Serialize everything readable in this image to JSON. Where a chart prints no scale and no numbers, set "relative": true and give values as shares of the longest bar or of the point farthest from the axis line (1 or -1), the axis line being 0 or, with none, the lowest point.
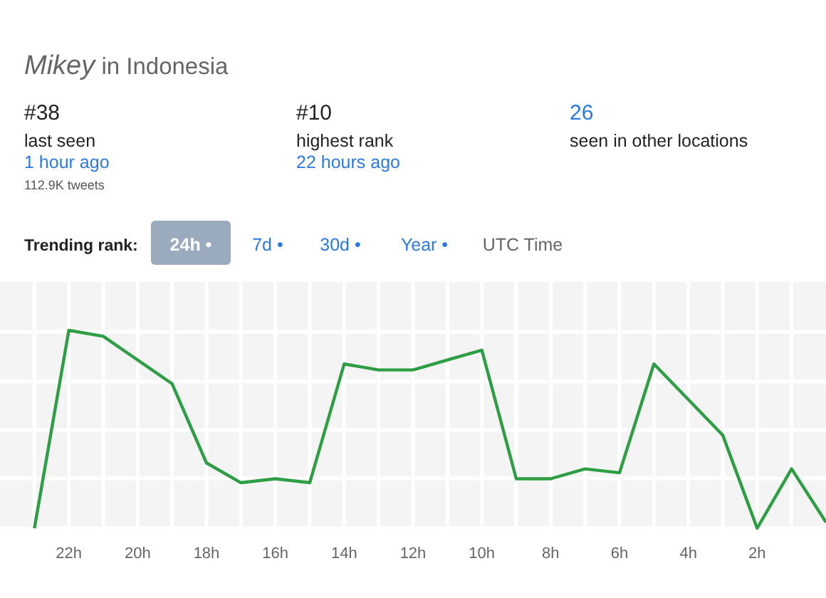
{
  "chart_data": {
    "type": "line",
    "title": "Mikey in Indonesia",
    "relative": true,
    "grid": true,
    "marker": "none",
    "annotations": [
      "#38",
      "last seen",
      "1 hour ago",
      "112.9K tweets",
      "#10",
      "highest rank",
      "22 hours ago",
      "26",
      "seen in other locations",
      "Trending rank:",
      "24h •",
      "7d •",
      "30d •",
      "Year •",
      "UTC Time"
    ],
    "x": [
      23,
      22,
      21,
      20,
      19,
      18,
      17,
      16,
      15,
      14,
      13,
      12,
      11,
      10,
      9,
      8,
      7,
      6,
      5,
      4,
      3,
      2,
      1,
      0
    ],
    "xlim": [
      24,
      0
    ],
    "xticks": [
      {
        "value": 23,
        "label": null
      },
      {
        "value": 22,
        "label": "22h"
      },
      {
        "value": 21,
        "label": null
      },
      {
        "value": 20,
        "label": "20h"
      },
      {
        "value": 19,
        "label": null
      },
      {
        "value": 18,
        "label": "18h"
      },
      {
        "value": 17,
        "label": null
      },
      {
        "value": 16,
        "label": "16h"
      },
      {
        "value": 15,
        "label": null
      },
      {
        "value": 14,
        "label": "14h"
      },
      {
        "value": 13,
        "label": null
      },
      {
        "value": 12,
        "label": "12h"
      },
      {
        "value": 11,
        "label": null
      },
      {
        "value": 10,
        "label": "10h"
      },
      {
        "value": 9,
        "label": null
      },
      {
        "value": 8,
        "label": "8h"
      },
      {
        "value": 7,
        "label": null
      },
      {
        "value": 6,
        "label": "6h"
      },
      {
        "value": 5,
        "label": null
      },
      {
        "value": 4,
        "label": "4h"
      },
      {
        "value": 3,
        "label": null
      },
      {
        "value": 2,
        "label": "2h"
      },
      {
        "value": 1,
        "label": null
      }
    ],
    "series": [
      {
        "color": "#2e9e44",
        "values": [
          0,
          1,
          0.97,
          0.85,
          0.73,
          0.33,
          0.23,
          0.25,
          0.23,
          0.83,
          0.8,
          0.8,
          0.85,
          0.9,
          0.25,
          0.25,
          0.3,
          0.28,
          0.83,
          0.65,
          0.47,
          0,
          0.3,
          0.03
        ]
      }
    ]
  }
}
